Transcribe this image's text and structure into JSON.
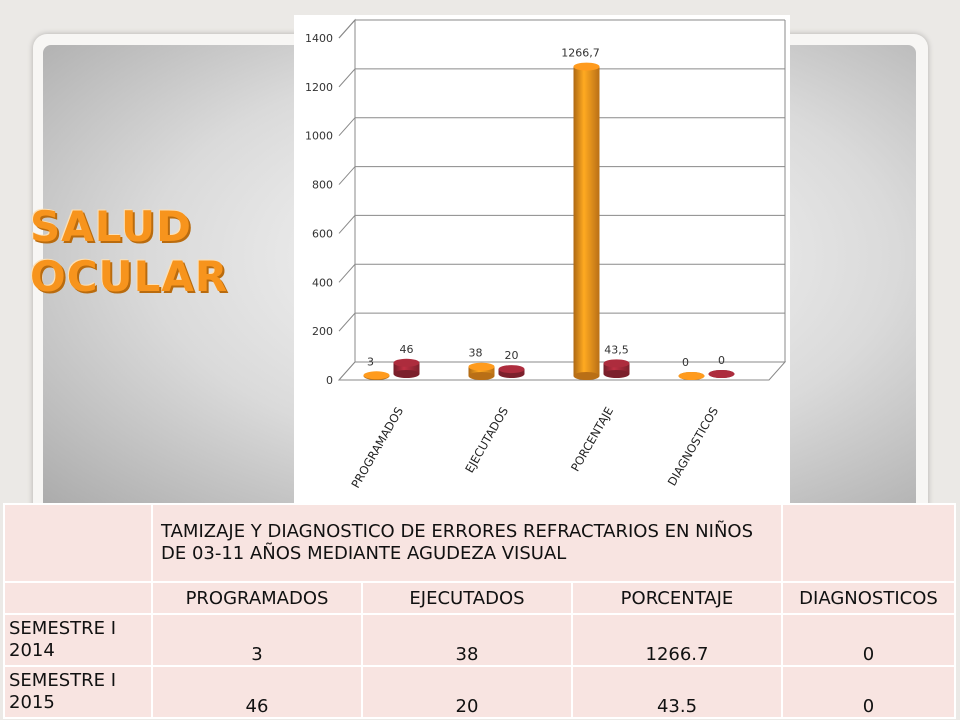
{
  "slide": {
    "title": "SALUD OCULAR"
  },
  "chart_data": {
    "type": "bar",
    "categories": [
      "PROGRAMADOS",
      "EJECUTADOS",
      "PORCENTAJE",
      "DIAGNOSTICOS"
    ],
    "series": [
      {
        "name": "SEMESTRE I 2014",
        "values": [
          3,
          38,
          1266.7,
          0
        ],
        "labels": [
          "3",
          "38",
          "1266,7",
          "0"
        ],
        "color": "#f7941d"
      },
      {
        "name": "SEMESTRE I 2015",
        "values": [
          46,
          20,
          43.5,
          0
        ],
        "labels": [
          "46",
          "20",
          "43,5",
          "0"
        ],
        "color": "#a52a3a"
      }
    ],
    "yticks": [
      "0",
      "200",
      "400",
      "600",
      "800",
      "1000",
      "1200",
      "1400"
    ],
    "ylim": [
      0,
      1400
    ],
    "legend_position": "right",
    "grid": true,
    "style": "3d-cylinder"
  },
  "table": {
    "caption": "TAMIZAJE Y DIAGNOSTICO DE ERRORES REFRACTARIOS EN NIÑOS DE 03-11 AÑOS MEDIANTE AGUDEZA VISUAL",
    "headers": [
      "PROGRAMADOS",
      "EJECUTADOS",
      "PORCENTAJE",
      "DIAGNOSTICOS"
    ],
    "rows": [
      {
        "label": "SEMESTRE I 2014",
        "values": [
          "3",
          "38",
          "1266.7",
          "0"
        ]
      },
      {
        "label": "SEMESTRE I 2015",
        "values": [
          "46",
          "20",
          "43.5",
          "0"
        ]
      }
    ]
  }
}
